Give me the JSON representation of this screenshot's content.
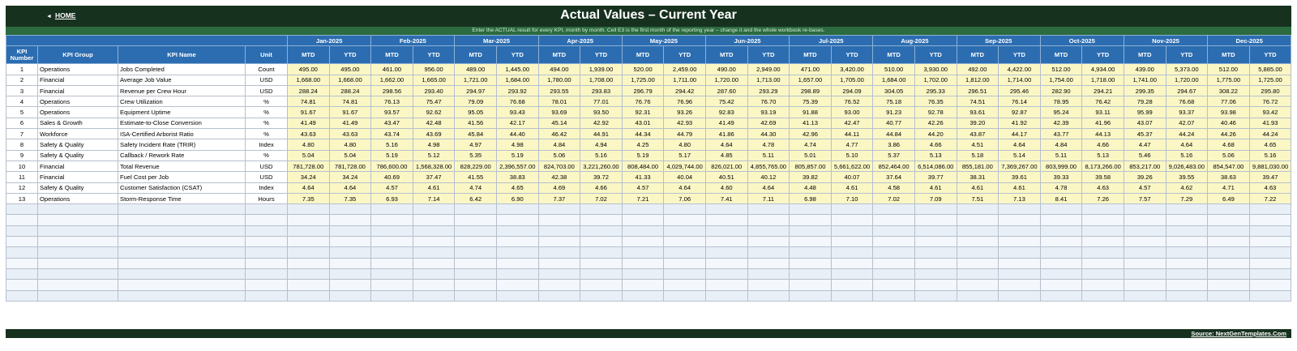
{
  "header": {
    "home_label": "HOME",
    "title": "Actual Values  –  Current Year",
    "subtitle": "Enter the ACTUAL result for every KPI, month by month. Cell E3 is the first month of the reporting year – change it and the whole workbook re-bases."
  },
  "table": {
    "col_headers": {
      "kpi_number": "KPI Number",
      "kpi_group": "KPI Group",
      "kpi_name": "KPI Name",
      "unit": "Unit",
      "mtd": "MTD",
      "ytd": "YTD"
    },
    "months": [
      "Jan-2025",
      "Feb-2025",
      "Mar-2025",
      "Apr-2025",
      "May-2025",
      "Jun-2025",
      "Jul-2025",
      "Aug-2025",
      "Sep-2025",
      "Oct-2025",
      "Nov-2025",
      "Dec-2025"
    ],
    "rows": [
      {
        "num": "1",
        "group": "Operations",
        "name": "Jobs Completed",
        "unit": "Count",
        "values": [
          "495.00",
          "495.00",
          "461.00",
          "956.00",
          "489.00",
          "1,445.00",
          "494.00",
          "1,939.00",
          "520.00",
          "2,459.00",
          "490.00",
          "2,949.00",
          "471.00",
          "3,420.00",
          "510.00",
          "3,930.00",
          "492.00",
          "4,422.00",
          "512.00",
          "4,934.00",
          "439.00",
          "5,373.00",
          "512.00",
          "5,885.00"
        ]
      },
      {
        "num": "2",
        "group": "Financial",
        "name": "Average Job Value",
        "unit": "USD",
        "values": [
          "1,668.00",
          "1,668.00",
          "1,662.00",
          "1,665.00",
          "1,721.00",
          "1,684.00",
          "1,780.00",
          "1,708.00",
          "1,725.00",
          "1,711.00",
          "1,720.00",
          "1,713.00",
          "1,657.00",
          "1,705.00",
          "1,684.00",
          "1,702.00",
          "1,812.00",
          "1,714.00",
          "1,754.00",
          "1,718.00",
          "1,741.00",
          "1,720.00",
          "1,775.00",
          "1,725.00"
        ]
      },
      {
        "num": "3",
        "group": "Financial",
        "name": "Revenue per Crew Hour",
        "unit": "USD",
        "values": [
          "288.24",
          "288.24",
          "298.56",
          "293.40",
          "294.97",
          "293.92",
          "293.55",
          "293.83",
          "296.79",
          "294.42",
          "287.60",
          "293.29",
          "298.89",
          "294.09",
          "304.05",
          "295.33",
          "296.51",
          "295.46",
          "282.90",
          "294.21",
          "299.35",
          "294.67",
          "308.22",
          "295.80"
        ]
      },
      {
        "num": "4",
        "group": "Operations",
        "name": "Crew Utilization",
        "unit": "%",
        "values": [
          "74.81",
          "74.81",
          "76.13",
          "75.47",
          "79.09",
          "76.68",
          "78.01",
          "77.01",
          "76.76",
          "76.96",
          "75.42",
          "76.70",
          "75.39",
          "76.52",
          "75.18",
          "76.35",
          "74.51",
          "76.14",
          "78.95",
          "76.42",
          "79.28",
          "76.68",
          "77.06",
          "76.72"
        ]
      },
      {
        "num": "5",
        "group": "Operations",
        "name": "Equipment Uptime",
        "unit": "%",
        "values": [
          "91.67",
          "91.67",
          "93.57",
          "92.62",
          "95.05",
          "93.43",
          "93.69",
          "93.50",
          "92.31",
          "93.26",
          "92.83",
          "93.19",
          "91.88",
          "93.00",
          "91.23",
          "92.78",
          "93.61",
          "92.87",
          "95.24",
          "93.11",
          "95.99",
          "93.37",
          "93.98",
          "93.42"
        ]
      },
      {
        "num": "6",
        "group": "Sales & Growth",
        "name": "Estimate-to-Close Conversion",
        "unit": "%",
        "values": [
          "41.49",
          "41.49",
          "43.47",
          "42.48",
          "41.56",
          "42.17",
          "45.14",
          "42.92",
          "43.01",
          "42.93",
          "41.49",
          "42.69",
          "41.13",
          "42.47",
          "40.77",
          "42.26",
          "39.20",
          "41.92",
          "42.39",
          "41.96",
          "43.07",
          "42.07",
          "40.46",
          "41.93"
        ]
      },
      {
        "num": "7",
        "group": "Workforce",
        "name": "ISA-Certified Arborist Ratio",
        "unit": "%",
        "values": [
          "43.63",
          "43.63",
          "43.74",
          "43.69",
          "45.84",
          "44.40",
          "46.42",
          "44.91",
          "44.34",
          "44.79",
          "41.86",
          "44.30",
          "42.96",
          "44.11",
          "44.84",
          "44.20",
          "43.87",
          "44.17",
          "43.77",
          "44.13",
          "45.37",
          "44.24",
          "44.26",
          "44.24"
        ]
      },
      {
        "num": "8",
        "group": "Safety & Quality",
        "name": "Safety Incident Rate (TRIR)",
        "unit": "Index",
        "values": [
          "4.80",
          "4.80",
          "5.16",
          "4.98",
          "4.97",
          "4.98",
          "4.84",
          "4.94",
          "4.25",
          "4.80",
          "4.64",
          "4.78",
          "4.74",
          "4.77",
          "3.86",
          "4.66",
          "4.51",
          "4.64",
          "4.84",
          "4.66",
          "4.47",
          "4.64",
          "4.68",
          "4.65"
        ]
      },
      {
        "num": "9",
        "group": "Safety & Quality",
        "name": "Callback / Rework Rate",
        "unit": "%",
        "values": [
          "5.04",
          "5.04",
          "5.19",
          "5.12",
          "5.35",
          "5.19",
          "5.06",
          "5.16",
          "5.19",
          "5.17",
          "4.85",
          "5.11",
          "5.01",
          "5.10",
          "5.37",
          "5.13",
          "5.18",
          "5.14",
          "5.11",
          "5.13",
          "5.46",
          "5.16",
          "5.06",
          "5.16"
        ]
      },
      {
        "num": "10",
        "group": "Financial",
        "name": "Total Revenue",
        "unit": "USD",
        "values": [
          "781,728.00",
          "781,728.00",
          "786,600.00",
          "1,568,328.00",
          "828,229.00",
          "2,396,557.00",
          "824,703.00",
          "3,221,260.00",
          "808,484.00",
          "4,029,744.00",
          "826,021.00",
          "4,855,765.00",
          "805,857.00",
          "5,661,622.00",
          "852,464.00",
          "6,514,086.00",
          "855,181.00",
          "7,369,267.00",
          "803,999.00",
          "8,173,266.00",
          "853,217.00",
          "9,026,483.00",
          "854,547.00",
          "9,881,030.00"
        ]
      },
      {
        "num": "11",
        "group": "Financial",
        "name": "Fuel Cost per Job",
        "unit": "USD",
        "values": [
          "34.24",
          "34.24",
          "40.69",
          "37.47",
          "41.55",
          "38.83",
          "42.38",
          "39.72",
          "41.33",
          "40.04",
          "40.51",
          "40.12",
          "39.82",
          "40.07",
          "37.64",
          "39.77",
          "38.31",
          "39.61",
          "39.33",
          "39.58",
          "39.26",
          "39.55",
          "38.63",
          "39.47"
        ]
      },
      {
        "num": "12",
        "group": "Safety & Quality",
        "name": "Customer Satisfaction (CSAT)",
        "unit": "Index",
        "values": [
          "4.64",
          "4.64",
          "4.57",
          "4.61",
          "4.74",
          "4.65",
          "4.69",
          "4.66",
          "4.57",
          "4.64",
          "4.60",
          "4.64",
          "4.48",
          "4.61",
          "4.58",
          "4.61",
          "4.61",
          "4.61",
          "4.78",
          "4.63",
          "4.57",
          "4.62",
          "4.71",
          "4.63"
        ]
      },
      {
        "num": "13",
        "group": "Operations",
        "name": "Storm-Response Time",
        "unit": "Hours",
        "values": [
          "7.35",
          "7.35",
          "6.93",
          "7.14",
          "6.42",
          "6.90",
          "7.37",
          "7.02",
          "7.21",
          "7.06",
          "7.41",
          "7.11",
          "6.98",
          "7.10",
          "7.02",
          "7.09",
          "7.51",
          "7.13",
          "8.41",
          "7.26",
          "7.57",
          "7.29",
          "6.49",
          "7.22"
        ]
      }
    ]
  },
  "footer": {
    "source_label": "Source: NextGenTemplates.Com"
  },
  "colors": {
    "title_bar": "#17311f",
    "sub_bar": "#2b6b3f",
    "header_blue": "#2c6db1",
    "input_yellow": "#fbf7c5"
  }
}
